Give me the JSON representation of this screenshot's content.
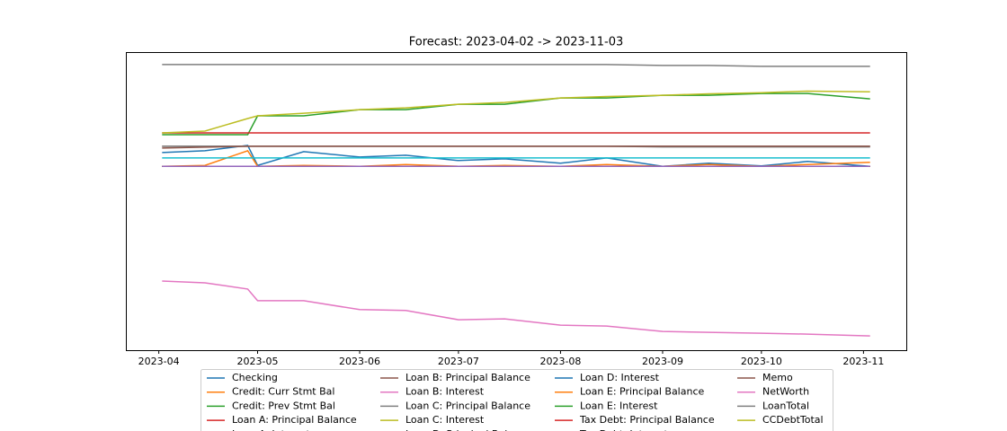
{
  "chart_data": {
    "type": "line",
    "title": "Forecast: 2023-04-02 -> 2023-11-03",
    "x": [
      "2023-04-02",
      "2023-04-15",
      "2023-04-28",
      "2023-05-01",
      "2023-05-15",
      "2023-06-01",
      "2023-06-15",
      "2023-07-01",
      "2023-07-15",
      "2023-08-01",
      "2023-08-15",
      "2023-09-01",
      "2023-09-15",
      "2023-10-01",
      "2023-10-15",
      "2023-11-03"
    ],
    "xlim": [
      "2023-03-22",
      "2023-11-14"
    ],
    "xticks": [
      {
        "value": "2023-04-01",
        "label": "2023-04"
      },
      {
        "value": "2023-05-01",
        "label": "2023-05"
      },
      {
        "value": "2023-06-01",
        "label": "2023-06"
      },
      {
        "value": "2023-07-01",
        "label": "2023-07"
      },
      {
        "value": "2023-08-01",
        "label": "2023-08"
      },
      {
        "value": "2023-09-01",
        "label": "2023-09"
      },
      {
        "value": "2023-10-01",
        "label": "2023-10"
      },
      {
        "value": "2023-11-01",
        "label": "2023-11"
      }
    ],
    "ylim": [
      0,
      100
    ],
    "legend": "lower center",
    "series": [
      {
        "name": "Checking",
        "color": "#1f77b4",
        "values": [
          66.3,
          66.9,
          68.7,
          62.0,
          66.6,
          64.8,
          65.4,
          63.6,
          64.2,
          62.7,
          64.5,
          61.7,
          62.7,
          61.8,
          63.3,
          61.7
        ]
      },
      {
        "name": "Credit: Curr Stmt Bal",
        "color": "#ff7f0e",
        "values": [
          61.7,
          62.0,
          66.9,
          61.7,
          62.0,
          61.7,
          62.3,
          61.7,
          62.0,
          61.7,
          62.3,
          61.7,
          62.3,
          61.7,
          62.3,
          63.0
        ]
      },
      {
        "name": "Credit: Prev Stmt Bal",
        "color": "#2ca02c",
        "values": [
          72.3,
          72.3,
          72.3,
          78.6,
          78.6,
          80.7,
          80.7,
          82.5,
          82.5,
          84.6,
          84.6,
          85.5,
          85.5,
          86.1,
          86.1,
          84.3
        ]
      },
      {
        "name": "Loan A: Principal Balance",
        "color": "#d62728",
        "values": [
          72.9,
          72.9,
          72.9,
          72.9,
          72.9,
          72.9,
          72.9,
          72.9,
          72.9,
          72.9,
          72.9,
          72.9,
          72.9,
          72.9,
          72.9,
          72.9
        ]
      },
      {
        "name": "Loan A: Interest",
        "color": "#9467bd",
        "values": [
          61.7,
          61.7,
          61.7,
          61.7,
          61.7,
          61.7,
          61.7,
          61.7,
          61.7,
          61.7,
          61.7,
          61.7,
          61.7,
          61.7,
          61.7,
          61.7
        ]
      },
      {
        "name": "Loan B: Principal Balance",
        "color": "#8c564b",
        "values": [
          68.4,
          68.4,
          68.4,
          68.4,
          68.4,
          68.4,
          68.4,
          68.4,
          68.4,
          68.4,
          68.4,
          68.4,
          68.4,
          68.4,
          68.4,
          68.4
        ]
      },
      {
        "name": "Loan B: Interest",
        "color": "#e377c2",
        "values": [
          61.7,
          61.7,
          61.7,
          61.7,
          61.7,
          61.7,
          61.7,
          61.7,
          61.7,
          61.7,
          61.7,
          61.7,
          61.7,
          61.7,
          61.7,
          61.7
        ]
      },
      {
        "name": "Loan C: Principal Balance",
        "color": "#7f7f7f",
        "values": [
          68.4,
          68.4,
          68.4,
          68.4,
          68.4,
          68.4,
          68.4,
          68.4,
          68.4,
          68.4,
          68.4,
          68.2,
          68.2,
          68.2,
          68.2,
          68.2
        ]
      },
      {
        "name": "Loan C: Interest",
        "color": "#bcbd22",
        "values": [
          61.7,
          61.7,
          61.7,
          61.7,
          61.7,
          61.7,
          61.7,
          61.7,
          61.7,
          61.7,
          61.7,
          61.7,
          61.7,
          61.7,
          61.7,
          61.7
        ]
      },
      {
        "name": "Loan D: Principal Balance",
        "color": "#17becf",
        "values": [
          64.5,
          64.5,
          64.5,
          64.5,
          64.5,
          64.5,
          64.5,
          64.5,
          64.5,
          64.5,
          64.5,
          64.5,
          64.5,
          64.5,
          64.5,
          64.5
        ]
      },
      {
        "name": "Loan D: Interest",
        "color": "#1f77b4",
        "values": [
          61.7,
          61.7,
          61.7,
          61.7,
          61.7,
          61.7,
          61.7,
          61.7,
          61.7,
          61.7,
          61.7,
          61.7,
          61.7,
          61.7,
          61.7,
          61.7
        ]
      },
      {
        "name": "Loan E: Principal Balance",
        "color": "#ff7f0e",
        "values": [
          61.7,
          61.7,
          61.7,
          61.7,
          61.7,
          61.7,
          61.7,
          61.7,
          61.7,
          61.7,
          61.7,
          61.7,
          61.7,
          61.7,
          61.7,
          61.7
        ]
      },
      {
        "name": "Loan E: Interest",
        "color": "#2ca02c",
        "values": [
          61.7,
          61.7,
          61.7,
          61.7,
          61.7,
          61.7,
          61.7,
          61.7,
          61.7,
          61.7,
          61.7,
          61.7,
          61.7,
          61.7,
          61.7,
          61.7
        ]
      },
      {
        "name": "Tax Debt: Principal Balance",
        "color": "#d62728",
        "values": [
          61.7,
          61.7,
          61.7,
          61.7,
          61.7,
          61.7,
          61.7,
          61.7,
          61.7,
          61.7,
          61.7,
          61.7,
          61.7,
          61.7,
          61.7,
          61.7
        ]
      },
      {
        "name": "Tax Debt: Interest",
        "color": "#9467bd",
        "values": [
          61.7,
          61.7,
          61.7,
          61.7,
          61.7,
          61.7,
          61.7,
          61.7,
          61.7,
          61.7,
          61.7,
          61.7,
          61.7,
          61.7,
          61.7,
          61.7
        ]
      },
      {
        "name": "Memo",
        "color": "#8c564b",
        "values": [
          67.8,
          68.1,
          68.4,
          68.4,
          68.4,
          68.4,
          68.4,
          68.4,
          68.4,
          68.4,
          68.4,
          68.4,
          68.4,
          68.4,
          68.4,
          68.4
        ]
      },
      {
        "name": "NetWorth",
        "color": "#e377c2",
        "values": [
          23.2,
          22.6,
          20.5,
          16.6,
          16.6,
          13.6,
          13.3,
          10.2,
          10.5,
          8.4,
          8.1,
          6.3,
          6.0,
          5.7,
          5.4,
          4.8
        ]
      },
      {
        "name": "LoanTotal",
        "color": "#7f7f7f",
        "values": [
          95.8,
          95.8,
          95.8,
          95.8,
          95.8,
          95.8,
          95.8,
          95.8,
          95.8,
          95.8,
          95.8,
          95.5,
          95.5,
          95.2,
          95.2,
          95.2
        ]
      },
      {
        "name": "CCDebtTotal",
        "color": "#bcbd22",
        "values": [
          72.9,
          73.5,
          77.7,
          78.6,
          79.5,
          80.7,
          81.3,
          82.5,
          83.1,
          84.6,
          85.1,
          85.5,
          86.0,
          86.4,
          86.9,
          86.7
        ]
      }
    ]
  }
}
